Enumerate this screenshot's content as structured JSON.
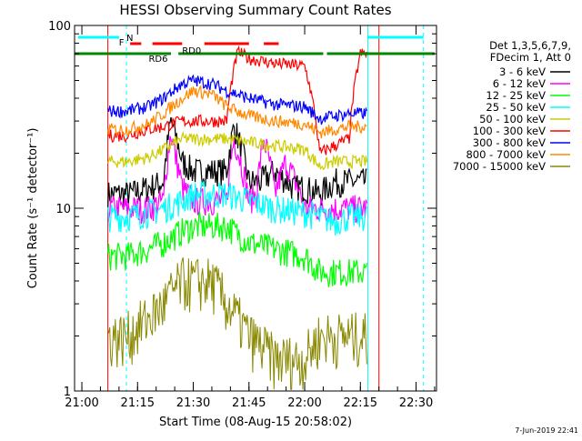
{
  "chart_data": {
    "type": "line",
    "title": "HESSI Observing Summary Count Rates",
    "xlabel": "Start Time (08-Aug-15 20:58:02)",
    "ylabel": "Count Rate (s⁻¹ detector⁻¹)",
    "y_scale": "log",
    "ylim": [
      1,
      100
    ],
    "y_ticks": [
      {
        "value": 1,
        "label": "1"
      },
      {
        "value": 10,
        "label": "10"
      },
      {
        "value": 100,
        "label": "100"
      }
    ],
    "xlim": [
      "20:58:02",
      "22:35:30"
    ],
    "x_ticks": [
      {
        "value": "21:00",
        "label": "21:00"
      },
      {
        "value": "21:15",
        "label": "21:15"
      },
      {
        "value": "21:30",
        "label": "21:30"
      },
      {
        "value": "21:45",
        "label": "21:45"
      },
      {
        "value": "22:00",
        "label": "22:00"
      },
      {
        "value": "22:15",
        "label": "22:15"
      },
      {
        "value": "22:30",
        "label": "22:30"
      }
    ],
    "legend_header": [
      "Det 1,3,5,6,7,9,",
      "FDecim 1, Att 0"
    ],
    "legend_position": "right",
    "series": [
      {
        "name": "3 - 6 keV",
        "color": "#000000",
        "x": [
          "21:07",
          "21:13",
          "21:18",
          "21:22",
          "21:24",
          "21:25",
          "21:27",
          "21:30",
          "21:35",
          "21:39",
          "21:41",
          "21:45",
          "21:48",
          "21:52",
          "21:57",
          "22:00",
          "22:04",
          "22:08",
          "22:12",
          "22:17"
        ],
        "y": [
          null,
          12,
          13,
          14,
          30,
          26,
          18,
          16,
          16,
          16,
          28,
          14,
          14,
          16,
          13,
          13,
          12,
          14,
          14,
          14
        ]
      },
      {
        "name": "6 - 12 keV",
        "color": "#ff00ff",
        "x": [
          "21:07",
          "21:12",
          "21:18",
          "21:22",
          "21:24",
          "21:25",
          "21:27",
          "21:30",
          "21:35",
          "21:39",
          "21:41",
          "21:45",
          "21:47",
          "21:49",
          "21:52",
          "21:55",
          "22:00",
          "22:04",
          "22:08",
          "22:12",
          "22:17"
        ],
        "y": [
          null,
          10,
          10,
          11,
          26,
          20,
          13,
          11,
          11,
          11,
          24,
          11,
          12,
          24,
          12,
          18,
          10,
          10,
          10,
          10,
          10
        ]
      },
      {
        "name": "12 - 25 keV",
        "color": "#00ff00",
        "x": [
          "21:07",
          "21:12",
          "21:18",
          "21:22",
          "21:27",
          "21:30",
          "21:35",
          "21:39",
          "21:45",
          "21:52",
          "22:00",
          "22:04",
          "22:08",
          "22:12",
          "22:17"
        ],
        "y": [
          null,
          5.5,
          6,
          6.5,
          7.5,
          8,
          8,
          8,
          6.5,
          6,
          5.5,
          4.5,
          4.5,
          4.5,
          4.5
        ]
      },
      {
        "name": "25 - 50 keV",
        "color": "#00ffff",
        "x": [
          "21:07",
          "21:12",
          "21:18",
          "21:22",
          "21:27",
          "21:30",
          "21:35",
          "21:39",
          "21:45",
          "21:52",
          "22:00",
          "22:04",
          "22:08",
          "22:12",
          "22:17"
        ],
        "y": [
          null,
          9,
          9.5,
          10,
          11,
          12,
          12,
          12,
          11,
          10,
          9.5,
          9,
          8.5,
          9,
          9
        ]
      },
      {
        "name": "50 - 100 keV",
        "color": "#cccc00",
        "x": [
          "21:07",
          "21:12",
          "21:18",
          "21:22",
          "21:27",
          "21:30",
          "21:35",
          "21:39",
          "21:45",
          "21:52",
          "22:00",
          "22:04",
          "22:08",
          "22:12",
          "22:17"
        ],
        "y": [
          null,
          18,
          19,
          21,
          24,
          24,
          24,
          24,
          23,
          22,
          21,
          17,
          18,
          18,
          18
        ]
      },
      {
        "name": "100 - 300 keV",
        "color": "#ff0000",
        "x": [
          "21:07",
          "21:12",
          "21:18",
          "21:22",
          "21:27",
          "21:30",
          "21:35",
          "21:39",
          "21:42",
          "21:45",
          "21:52",
          "22:00",
          "22:04",
          "22:08",
          "22:12",
          "22:15",
          "22:17"
        ],
        "y": [
          null,
          25,
          27,
          28,
          30,
          30,
          30,
          30,
          72,
          66,
          62,
          60,
          20,
          22,
          24,
          70,
          70
        ]
      },
      {
        "name": "300 - 800 keV",
        "color": "#0000ff",
        "x": [
          "21:07",
          "21:12",
          "21:18",
          "21:22",
          "21:27",
          "21:30",
          "21:35",
          "21:39",
          "21:45",
          "21:52",
          "22:00",
          "22:04",
          "22:08",
          "22:12",
          "22:17"
        ],
        "y": [
          null,
          34,
          36,
          40,
          48,
          50,
          48,
          44,
          40,
          37,
          36,
          31,
          32,
          33,
          33
        ]
      },
      {
        "name": "800 - 7000 keV",
        "color": "#ff8800",
        "x": [
          "21:07",
          "21:12",
          "21:18",
          "21:22",
          "21:27",
          "21:30",
          "21:35",
          "21:39",
          "21:45",
          "21:52",
          "22:00",
          "22:04",
          "22:08",
          "22:12",
          "22:17"
        ],
        "y": [
          null,
          27,
          29,
          33,
          40,
          44,
          42,
          36,
          32,
          30,
          29,
          26,
          27,
          28,
          28
        ]
      },
      {
        "name": "7000 - 15000 keV",
        "color": "#888800",
        "x": [
          "21:07",
          "21:12",
          "21:18",
          "21:22",
          "21:27",
          "21:30",
          "21:35",
          "21:39",
          "21:45",
          "21:52",
          "22:00",
          "22:04",
          "22:08",
          "22:12",
          "22:17"
        ],
        "y": [
          null,
          2,
          2.5,
          3,
          4,
          4,
          4,
          3,
          2,
          1.5,
          1.5,
          2,
          2,
          2,
          2
        ]
      }
    ],
    "annotations": [
      {
        "text": "N",
        "color": "#00ffff"
      },
      {
        "text": "F",
        "color": "#ff0000"
      },
      {
        "text": "RD6",
        "color": "#008800"
      },
      {
        "text": "RD0",
        "color": "#008800"
      }
    ],
    "timestamp": "7-Jun-2019 22:41"
  },
  "colors": {
    "solid_interval": "#ff0000",
    "cyan_interval": "#00ffff",
    "green_bar": "#008800",
    "red_bar": "#ff0000"
  }
}
